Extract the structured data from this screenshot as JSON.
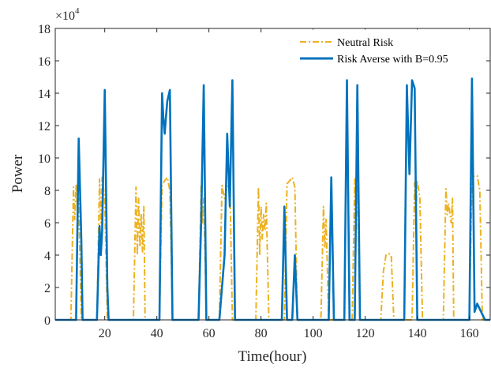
{
  "chart_data": {
    "type": "line",
    "xlabel": "Time(hour)",
    "ylabel": "Power",
    "exponent_base": "×10",
    "exponent_power": "4",
    "xlim": [
      1,
      168
    ],
    "ylim": [
      0,
      18
    ],
    "y_multiplier": 10000,
    "xticks": [
      20,
      40,
      60,
      80,
      100,
      120,
      140,
      160
    ],
    "yticks": [
      0,
      2,
      4,
      6,
      8,
      10,
      12,
      14,
      16,
      18
    ],
    "legend_position": "top-right",
    "grid": false,
    "series": [
      {
        "name": "Neutral Risk",
        "color": "#EDB120",
        "style": "dash-dot",
        "points": [
          [
            1,
            0
          ],
          [
            7,
            0
          ],
          [
            8,
            8.2
          ],
          [
            8.5,
            6.2
          ],
          [
            9,
            8.3
          ],
          [
            9.5,
            7.0
          ],
          [
            10,
            7.5
          ],
          [
            11,
            0
          ],
          [
            17,
            0
          ],
          [
            18,
            8.7
          ],
          [
            18.5,
            6.0
          ],
          [
            19,
            8.8
          ],
          [
            20,
            7.5
          ],
          [
            21,
            0
          ],
          [
            31,
            0
          ],
          [
            32,
            8.2
          ],
          [
            32.5,
            4.0
          ],
          [
            33,
            7.5
          ],
          [
            33.5,
            4.5
          ],
          [
            34,
            6.5
          ],
          [
            34.5,
            4.2
          ],
          [
            35,
            7.0
          ],
          [
            35.5,
            0
          ],
          [
            41,
            0
          ],
          [
            42,
            8.3
          ],
          [
            43,
            8.6
          ],
          [
            44,
            8.8
          ],
          [
            45,
            8.0
          ],
          [
            46,
            0
          ],
          [
            56,
            0
          ],
          [
            57,
            8.3
          ],
          [
            57.5,
            6.0
          ],
          [
            58,
            7.5
          ],
          [
            59,
            0
          ],
          [
            64,
            0
          ],
          [
            65,
            8.3
          ],
          [
            66,
            7.5
          ],
          [
            67,
            8.2
          ],
          [
            68,
            8.6
          ],
          [
            69,
            0
          ],
          [
            78,
            0
          ],
          [
            79,
            8.2
          ],
          [
            79.5,
            4.0
          ],
          [
            80,
            7.0
          ],
          [
            80.5,
            5.0
          ],
          [
            81,
            6.5
          ],
          [
            81.5,
            5.5
          ],
          [
            82,
            7.2
          ],
          [
            83,
            0
          ],
          [
            89,
            0
          ],
          [
            90,
            8.4
          ],
          [
            91,
            8.6
          ],
          [
            92,
            8.8
          ],
          [
            93,
            8.2
          ],
          [
            94,
            0
          ],
          [
            103,
            0
          ],
          [
            104,
            7.0
          ],
          [
            104.5,
            4.5
          ],
          [
            105,
            6.2
          ],
          [
            106,
            0
          ],
          [
            115,
            0
          ],
          [
            116,
            8.7
          ],
          [
            116.5,
            6.5
          ],
          [
            117,
            8.2
          ],
          [
            118,
            0
          ],
          [
            126,
            0
          ],
          [
            127,
            3.0
          ],
          [
            128,
            4.0
          ],
          [
            129,
            4.1
          ],
          [
            130,
            4.0
          ],
          [
            131,
            0
          ],
          [
            138,
            0
          ],
          [
            139,
            8.5
          ],
          [
            139.5,
            6.5
          ],
          [
            140,
            8.6
          ],
          [
            141,
            7.5
          ],
          [
            142,
            0
          ],
          [
            150,
            0
          ],
          [
            151,
            8.1
          ],
          [
            151.5,
            6.5
          ],
          [
            152,
            7.2
          ],
          [
            153,
            6.0
          ],
          [
            153.5,
            7.5
          ],
          [
            154,
            0
          ],
          [
            160,
            0
          ],
          [
            161,
            8.8
          ],
          [
            162,
            8.9
          ],
          [
            163,
            8.9
          ],
          [
            164,
            8.0
          ],
          [
            165,
            0
          ],
          [
            168,
            0
          ]
        ]
      },
      {
        "name": "Risk Averse with B=0.95",
        "color": "#0072BD",
        "style": "solid",
        "points": [
          [
            1,
            0
          ],
          [
            9,
            0
          ],
          [
            10,
            11.2
          ],
          [
            11,
            5.0
          ],
          [
            11.5,
            0
          ],
          [
            17,
            0
          ],
          [
            18,
            5.8
          ],
          [
            18.5,
            4.0
          ],
          [
            19,
            5.5
          ],
          [
            20,
            14.2
          ],
          [
            21,
            2.0
          ],
          [
            21.5,
            0
          ],
          [
            41,
            0
          ],
          [
            42,
            14.0
          ],
          [
            42.5,
            12.5
          ],
          [
            43,
            11.5
          ],
          [
            43.5,
            12.5
          ],
          [
            44,
            13.5
          ],
          [
            45,
            14.2
          ],
          [
            46,
            0
          ],
          [
            56,
            0
          ],
          [
            57,
            6.0
          ],
          [
            58,
            14.5
          ],
          [
            59,
            0
          ],
          [
            64,
            0
          ],
          [
            66,
            4.0
          ],
          [
            67,
            11.5
          ],
          [
            68,
            7.0
          ],
          [
            69,
            14.8
          ],
          [
            70,
            0
          ],
          [
            88,
            0
          ],
          [
            89,
            7.0
          ],
          [
            90,
            0
          ],
          [
            92,
            0
          ],
          [
            93,
            4.0
          ],
          [
            94,
            0
          ],
          [
            106,
            0
          ],
          [
            107,
            8.8
          ],
          [
            108,
            0
          ],
          [
            112,
            0
          ],
          [
            113,
            14.8
          ],
          [
            114,
            0
          ],
          [
            116,
            0
          ],
          [
            117,
            14.5
          ],
          [
            118,
            0
          ],
          [
            135,
            0
          ],
          [
            136,
            14.5
          ],
          [
            137,
            9.0
          ],
          [
            138,
            14.8
          ],
          [
            139,
            14.3
          ],
          [
            140,
            0
          ],
          [
            160,
            0
          ],
          [
            161,
            14.9
          ],
          [
            162,
            0.5
          ],
          [
            163,
            1.0
          ],
          [
            166,
            0
          ],
          [
            168,
            0
          ]
        ]
      }
    ]
  }
}
